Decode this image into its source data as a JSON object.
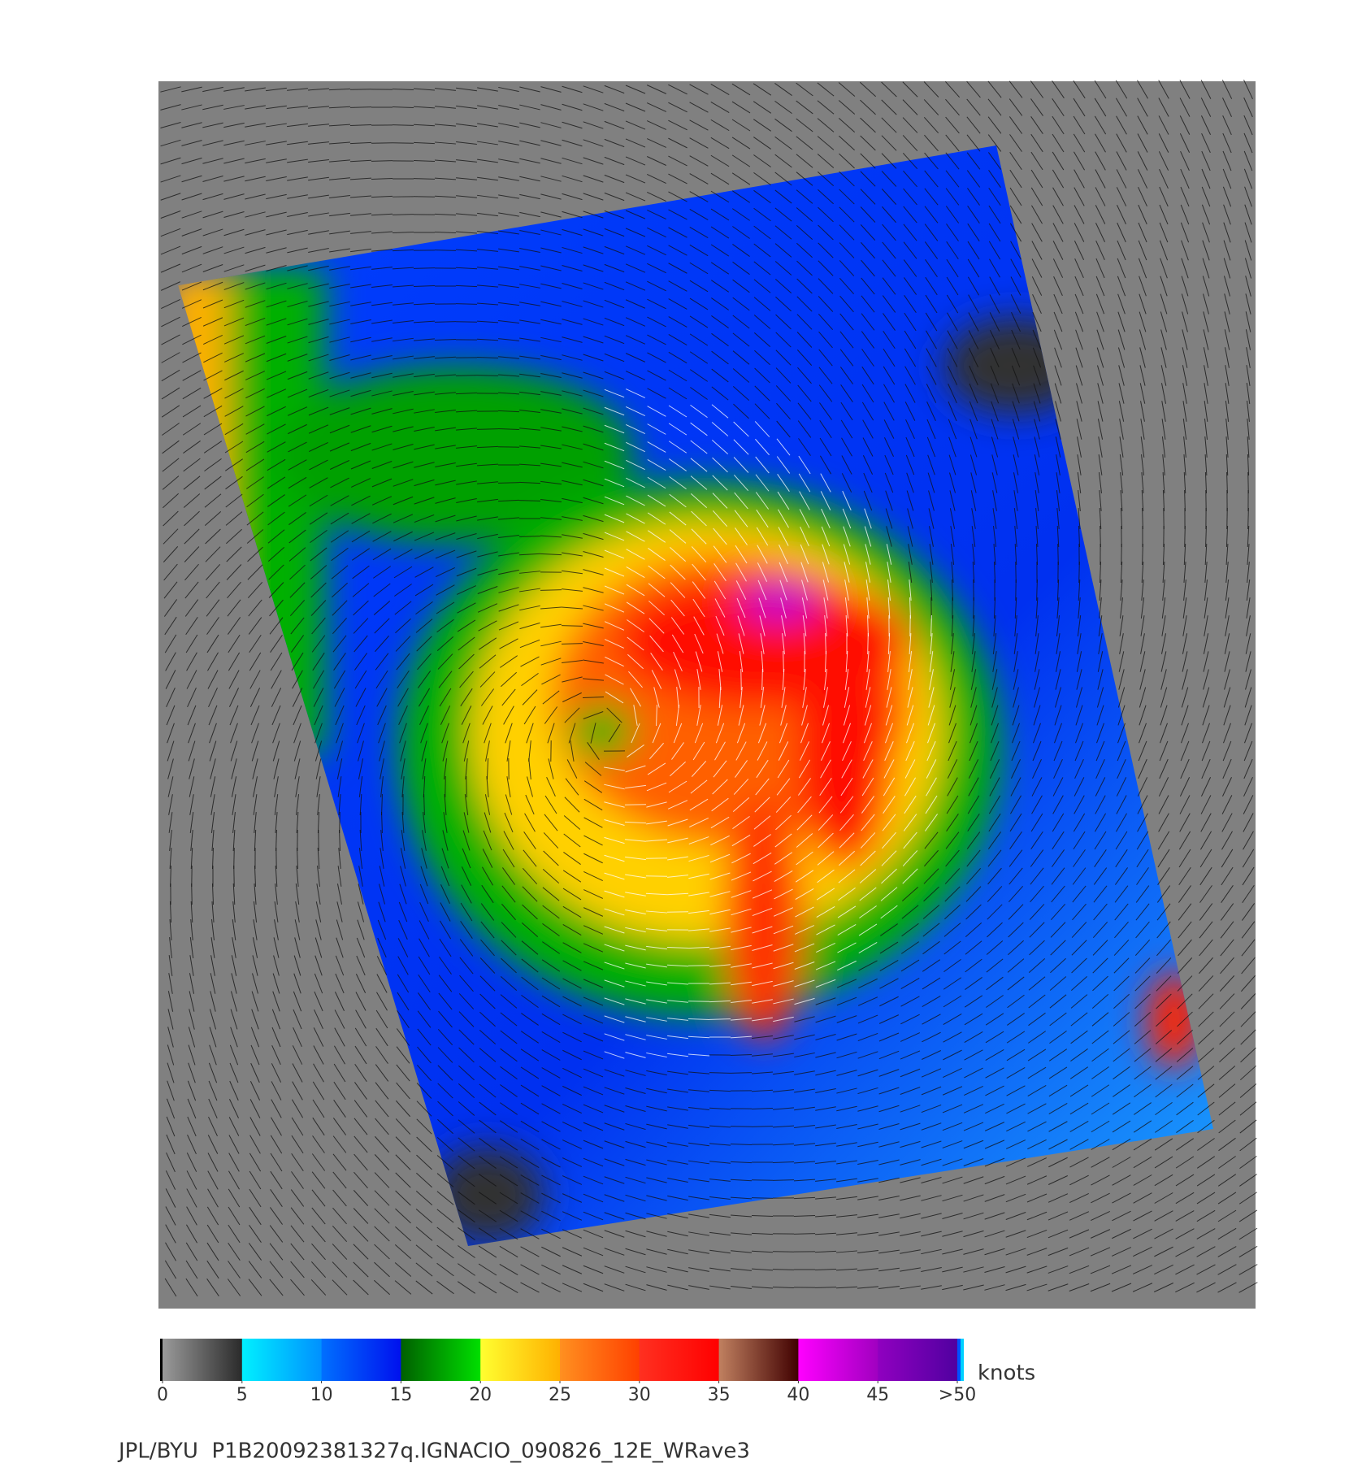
{
  "colorbar": {
    "ticks": [
      0,
      5,
      10,
      15,
      20,
      25,
      30,
      35,
      40,
      45,
      {
        "value": 50,
        "label": ">50"
      }
    ],
    "range": [
      0,
      50
    ],
    "colors": [
      [
        "#9a9a9a",
        "#2a2a2a"
      ],
      [
        "#00f0ff",
        "#0090ff"
      ],
      [
        "#0070ff",
        "#0010ee"
      ],
      [
        "#006000",
        "#00e000"
      ],
      [
        "#ffff30",
        "#ffb000"
      ],
      [
        "#ff9020",
        "#ff4000"
      ],
      [
        "#ff3020",
        "#ff0000"
      ],
      [
        "#c08060",
        "#400000"
      ],
      [
        "#ff00ff",
        "#a000c0"
      ],
      [
        "#9000c0",
        "#5000a0"
      ]
    ],
    "unit": "knots"
  },
  "caption": "JPL/BYU  P1B20092381327q.IGNACIO_090826_12E_WRave3"
}
